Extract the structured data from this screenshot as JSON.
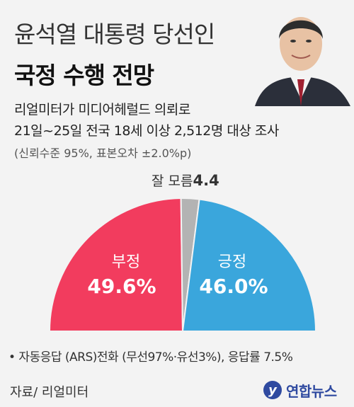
{
  "header": {
    "title_line1": "윤석열 대통령 당선인",
    "title_line2": "국정 수행 전망"
  },
  "survey": {
    "line1": "리얼미터가 미디어헤럴드 의뢰로",
    "line2": "21일~25일 전국 18세 이상 2,512명 대상 조사",
    "line3": "(신뢰수준 95%, 표본오차 ±2.0%p)"
  },
  "chart_data": {
    "type": "pie",
    "style": "half-donut",
    "slices": [
      {
        "label": "부정",
        "value": 49.6,
        "display": "49.6%",
        "color": "#f23c5e"
      },
      {
        "label": "잘 모름",
        "value": 4.4,
        "display": "4.4",
        "color": "#b3b3b3"
      },
      {
        "label": "긍정",
        "value": 46.0,
        "display": "46.0%",
        "color": "#3aa6dc"
      }
    ]
  },
  "footnote": "• 자동응답 (ARS)전화 (무선97%·유선3%), 응답률 7.5%",
  "source": "자료/ 리얼미터",
  "logo": {
    "mark": "y",
    "text": "연합뉴스",
    "color": "#2f4aa0"
  }
}
